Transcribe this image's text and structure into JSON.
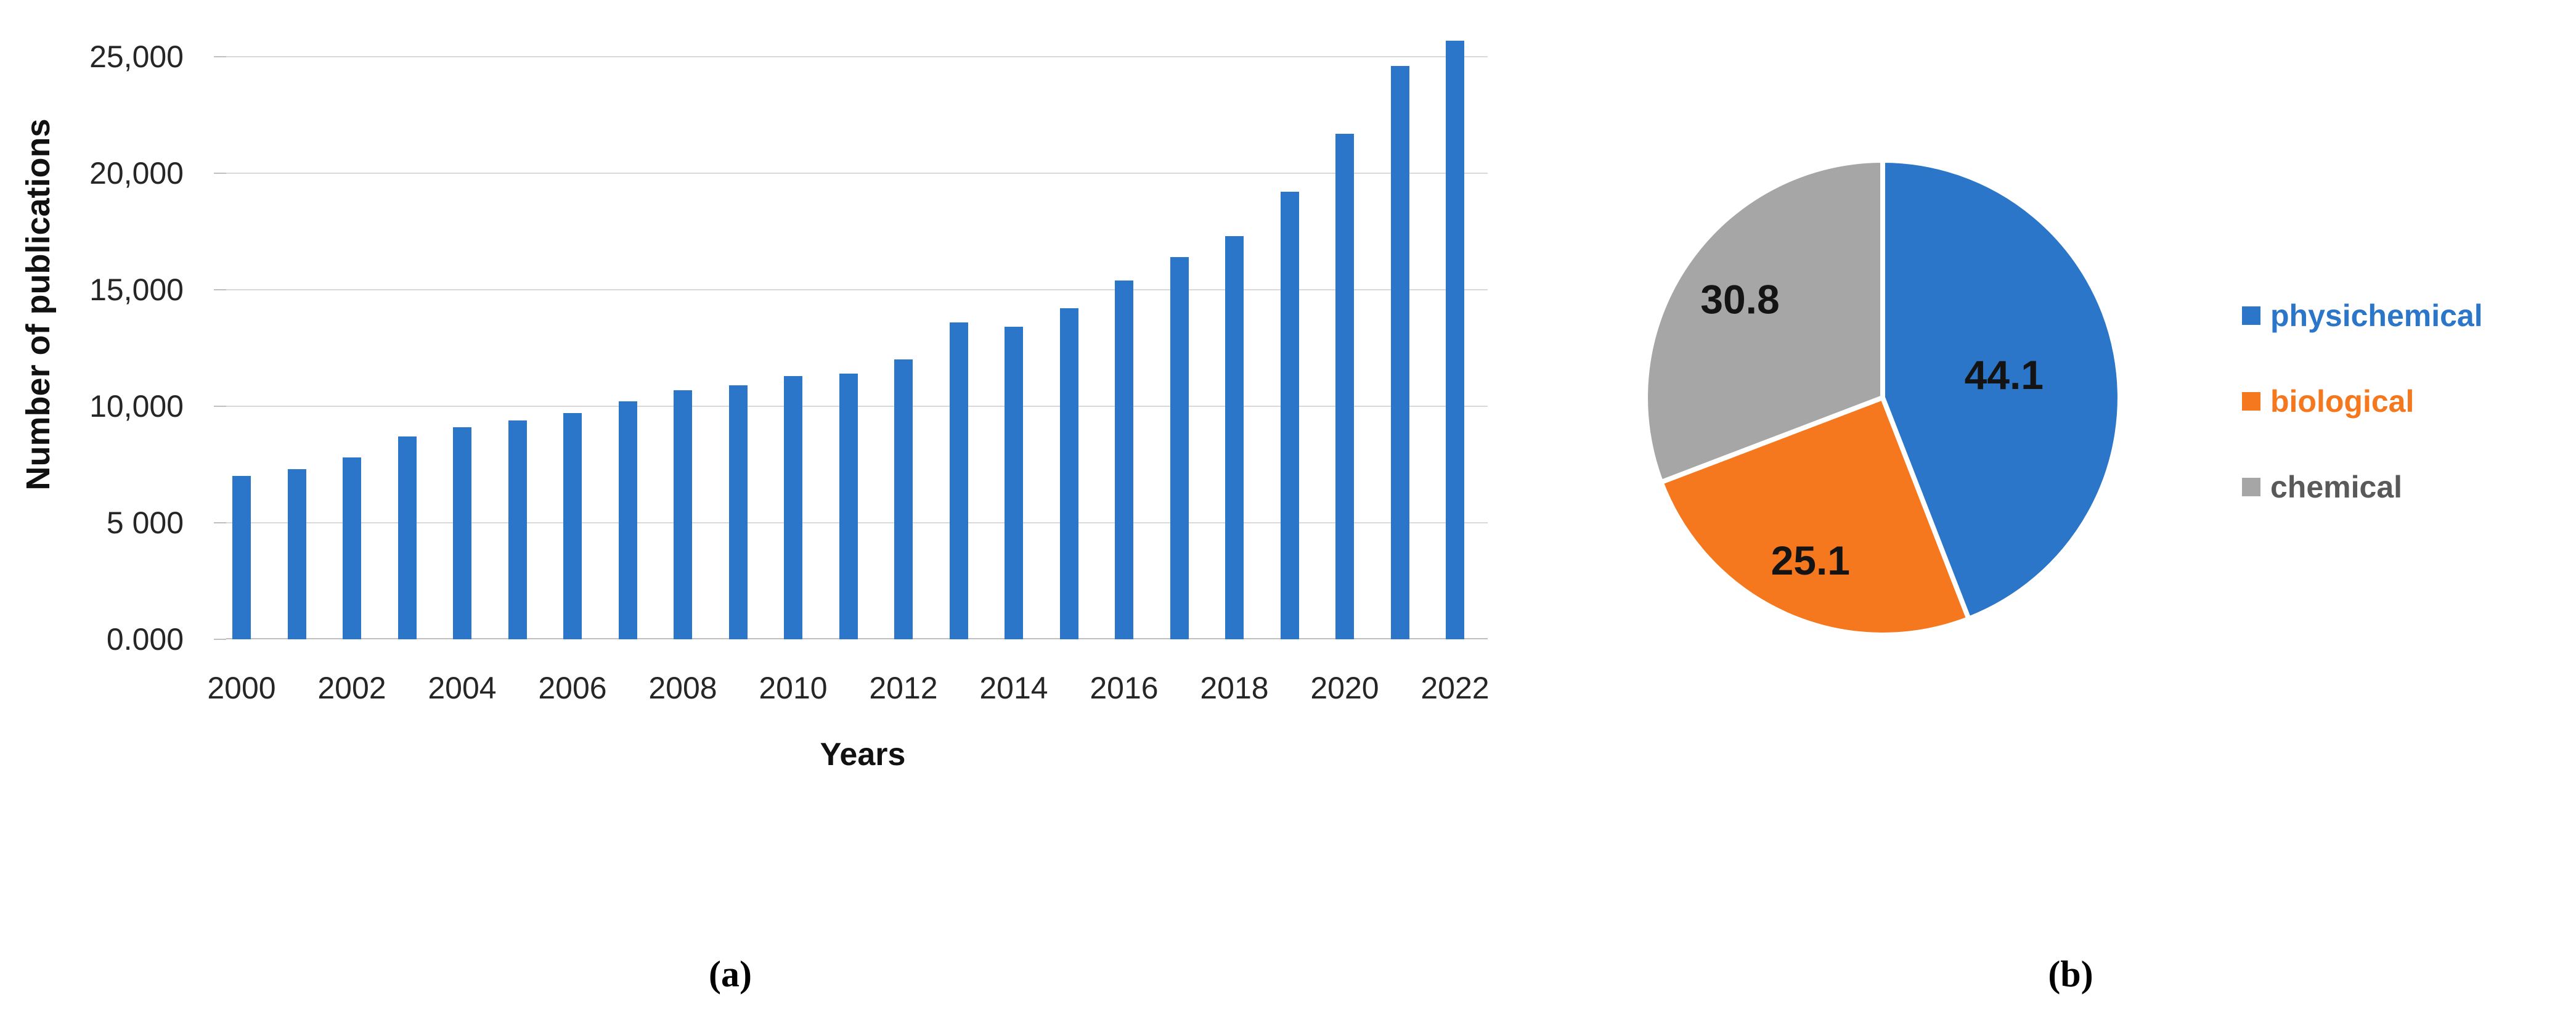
{
  "captions": {
    "a": "(a)",
    "b": "(b)"
  },
  "chart_data": [
    {
      "type": "bar",
      "title": "",
      "xlabel": "Years",
      "ylabel": "Number of publications",
      "categories": [
        2000,
        2001,
        2002,
        2003,
        2004,
        2005,
        2006,
        2007,
        2008,
        2009,
        2010,
        2011,
        2012,
        2013,
        2014,
        2015,
        2016,
        2017,
        2018,
        2019,
        2020,
        2021,
        2022
      ],
      "values": [
        7000,
        7300,
        7800,
        8700,
        9100,
        9400,
        9700,
        10200,
        10700,
        10900,
        11300,
        11400,
        12000,
        13600,
        13400,
        14200,
        15400,
        16400,
        17300,
        19200,
        21700,
        24600,
        25700
      ],
      "ylim": [
        0,
        25000
      ],
      "grid": true,
      "y_tick_labels_bottom_to_top": [
        "0.000",
        "5 000",
        "10,000",
        "15,000",
        "20,000",
        "25,000"
      ],
      "x_tick_labels": [
        "2000",
        "2002",
        "2004",
        "2006",
        "2008",
        "2010",
        "2012",
        "2014",
        "2016",
        "2018",
        "2020",
        "2022"
      ],
      "bar_color": "#2B76C8",
      "gridline_color": "#d9d9d9",
      "axis_line_color": "#bfbfbf"
    },
    {
      "type": "pie",
      "start_angle_deg": 0,
      "direction": "clockwise",
      "legend_position": "right",
      "slices": [
        {
          "label": "physichemical",
          "value": 44.1,
          "data_label": "44.1",
          "color": "#2B76C8",
          "legend_text_color": "#2B76C8"
        },
        {
          "label": "biological",
          "value": 25.1,
          "data_label": "25.1",
          "color": "#F5771E",
          "legend_text_color": "#F5771E"
        },
        {
          "label": "chemical",
          "value": 30.8,
          "data_label": "30.8",
          "color": "#A6A6A6",
          "legend_text_color": "#595959"
        }
      ],
      "data_label_color": "#141414",
      "separator_color": "#ffffff"
    }
  ]
}
